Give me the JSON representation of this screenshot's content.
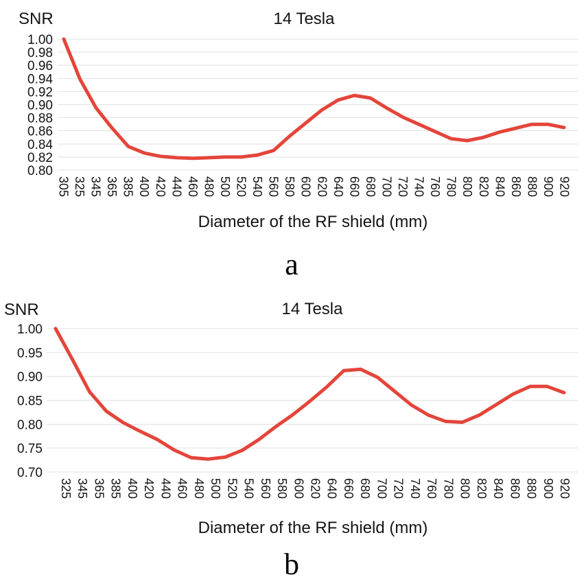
{
  "figure": {
    "background": "#ffffff",
    "panels": [
      "a",
      "b"
    ],
    "grid_color": "#e2e2e2"
  },
  "chart_data": [
    {
      "type": "line",
      "title": "14 Tesla",
      "ylabel": "SNR",
      "xlabel": "Diameter of the RF shield (mm)",
      "caption": "a",
      "line_color": "#e4453a",
      "grid": true,
      "legend_position": "none",
      "ylim": [
        0.8,
        1.0
      ],
      "y_tick_labels": [
        "1.00",
        "0.98",
        "0.96",
        "0.94",
        "0.92",
        "0.90",
        "0.88",
        "0.86",
        "0.84",
        "0.82",
        "0.80"
      ],
      "categories": [
        305,
        325,
        345,
        365,
        385,
        400,
        420,
        440,
        460,
        480,
        500,
        520,
        540,
        560,
        580,
        600,
        620,
        640,
        660,
        680,
        700,
        720,
        740,
        760,
        780,
        800,
        820,
        840,
        860,
        880,
        900,
        920
      ],
      "values": [
        1.0,
        0.939,
        0.895,
        0.864,
        0.836,
        0.826,
        0.821,
        0.819,
        0.818,
        0.819,
        0.82,
        0.82,
        0.823,
        0.83,
        0.852,
        0.872,
        0.892,
        0.907,
        0.914,
        0.91,
        0.895,
        0.881,
        0.87,
        0.859,
        0.848,
        0.845,
        0.85,
        0.858,
        0.864,
        0.87,
        0.87,
        0.865
      ]
    },
    {
      "type": "line",
      "title": "14 Tesla",
      "ylabel": "SNR",
      "xlabel": "Diameter of the RF shield (mm)",
      "caption": "b",
      "line_color": "#e4453a",
      "grid": true,
      "legend_position": "none",
      "ylim": [
        0.7,
        1.0
      ],
      "y_tick_labels": [
        "1.00",
        "0.95",
        "0.90",
        "0.85",
        "0.80",
        "0.75",
        "0.70"
      ],
      "categories": [
        325,
        345,
        365,
        385,
        400,
        420,
        440,
        460,
        480,
        500,
        520,
        540,
        560,
        580,
        600,
        620,
        640,
        660,
        680,
        700,
        720,
        740,
        760,
        780,
        800,
        820,
        840,
        860,
        880,
        900,
        920
      ],
      "values": [
        1.0,
        0.935,
        0.868,
        0.827,
        0.803,
        0.785,
        0.768,
        0.746,
        0.73,
        0.727,
        0.731,
        0.745,
        0.768,
        0.795,
        0.82,
        0.848,
        0.878,
        0.912,
        0.915,
        0.898,
        0.869,
        0.84,
        0.819,
        0.806,
        0.804,
        0.819,
        0.841,
        0.863,
        0.879,
        0.879,
        0.866
      ]
    }
  ]
}
